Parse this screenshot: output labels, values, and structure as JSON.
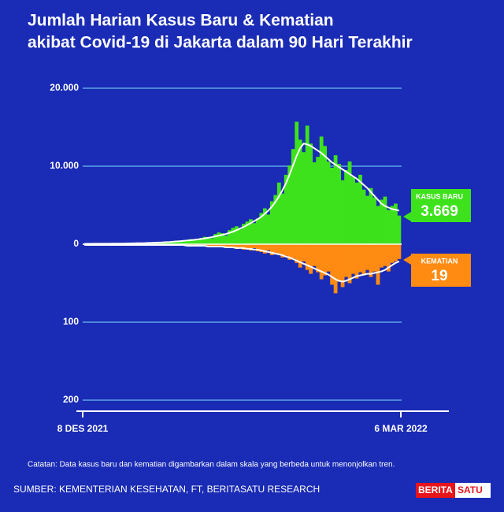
{
  "chart_data": {
    "type": "mirrored-bar",
    "title": [
      "Jumlah Harian Kasus Baru & Kematian",
      "akibat Covid-19 di Jakarta dalam 90 Hari Terakhir"
    ],
    "categories": [
      "8 DES 2021",
      null,
      null,
      null,
      null,
      null,
      null,
      null,
      null,
      null,
      null,
      null,
      null,
      null,
      null,
      null,
      null,
      null,
      null,
      null,
      null,
      null,
      null,
      null,
      null,
      null,
      null,
      null,
      null,
      null,
      null,
      null,
      null,
      null,
      null,
      null,
      null,
      null,
      null,
      null,
      null,
      null,
      null,
      null,
      null,
      null,
      null,
      null,
      null,
      null,
      null,
      null,
      null,
      null,
      null,
      null,
      null,
      null,
      null,
      null,
      null,
      null,
      null,
      null,
      null,
      null,
      null,
      null,
      null,
      null,
      null,
      null,
      null,
      null,
      null,
      null,
      null,
      null,
      null,
      null,
      null,
      null,
      null,
      null,
      null,
      null,
      null,
      null,
      null,
      "6 MAR 2022"
    ],
    "series": [
      {
        "name": "KASUS BARU",
        "color": "#3ee21c",
        "latest_label": "3.669",
        "values": [
          45,
          50,
          60,
          55,
          40,
          70,
          80,
          65,
          50,
          90,
          100,
          95,
          80,
          120,
          150,
          140,
          110,
          180,
          200,
          190,
          160,
          250,
          300,
          280,
          220,
          380,
          450,
          420,
          350,
          550,
          650,
          600,
          500,
          800,
          950,
          900,
          750,
          1300,
          1500,
          1400,
          1100,
          1800,
          2100,
          2300,
          1900,
          2600,
          2900,
          3200,
          2700,
          3300,
          4000,
          4600,
          3800,
          5500,
          6300,
          7900,
          6500,
          8900,
          10100,
          12200,
          15700,
          13400,
          11800,
          15200,
          12900,
          10500,
          11200,
          13800,
          12600,
          10600,
          9800,
          11400,
          10300,
          8200,
          9500,
          10600,
          8600,
          7900,
          8900,
          7000,
          6200,
          7200,
          6000,
          4900,
          5700,
          6100,
          4400,
          4900,
          5200,
          3669
        ],
        "trend": [
          50,
          52,
          55,
          57,
          58,
          60,
          62,
          65,
          68,
          72,
          78,
          85,
          95,
          105,
          115,
          125,
          135,
          145,
          160,
          175,
          190,
          210,
          235,
          260,
          285,
          315,
          350,
          385,
          420,
          460,
          510,
          560,
          610,
          670,
          740,
          820,
          900,
          1000,
          1100,
          1200,
          1300,
          1450,
          1600,
          1800,
          2000,
          2200,
          2450,
          2700,
          2950,
          3200,
          3500,
          3900,
          4300,
          4800,
          5400,
          6100,
          6900,
          7800,
          8900,
          10100,
          11300,
          12300,
          12900,
          12800,
          12600,
          12300,
          12000,
          11700,
          11300,
          10900,
          10500,
          10200,
          9900,
          9600,
          9300,
          9000,
          8700,
          8400,
          8000,
          7600,
          7200,
          6700,
          6200,
          5700,
          5200,
          4900,
          4700,
          4500,
          4400,
          4300
        ]
      },
      {
        "name": "KEMATIAN",
        "color": "#ff8b12",
        "axis": "y2",
        "latest_label": "19",
        "values": [
          1,
          0,
          1,
          0,
          0,
          1,
          0,
          1,
          0,
          0,
          1,
          0,
          1,
          1,
          0,
          1,
          0,
          1,
          1,
          0,
          1,
          1,
          0,
          1,
          2,
          1,
          1,
          2,
          1,
          2,
          2,
          1,
          3,
          2,
          2,
          3,
          2,
          3,
          4,
          3,
          4,
          5,
          3,
          6,
          5,
          7,
          6,
          8,
          5,
          9,
          10,
          12,
          8,
          14,
          11,
          13,
          17,
          15,
          20,
          18,
          24,
          30,
          22,
          33,
          38,
          28,
          36,
          45,
          40,
          35,
          52,
          63,
          48,
          55,
          42,
          50,
          38,
          44,
          36,
          40,
          33,
          42,
          35,
          52,
          30,
          28,
          35,
          24,
          22,
          19
        ],
        "trend": [
          1,
          1,
          1,
          1,
          1,
          1,
          1,
          1,
          1,
          1,
          1,
          1,
          1,
          1,
          1,
          1,
          1,
          1,
          1,
          1,
          1,
          1,
          1,
          1,
          1,
          1,
          1,
          1,
          1,
          2,
          2,
          2,
          2,
          2,
          2,
          3,
          3,
          3,
          3,
          3,
          4,
          4,
          4,
          5,
          5,
          5,
          6,
          6,
          7,
          7,
          8,
          9,
          10,
          11,
          12,
          13,
          14,
          16,
          17,
          19,
          21,
          23,
          25,
          27,
          29,
          31,
          33,
          35,
          37,
          39,
          42,
          45,
          47,
          48,
          47,
          45,
          43,
          41,
          40,
          39,
          38,
          38,
          37,
          36,
          35,
          33,
          30,
          27,
          24,
          22
        ]
      }
    ],
    "ylim": [
      0,
      20000
    ],
    "yticks": [
      0,
      {
        "value": 10000,
        "label": "10.000"
      },
      {
        "value": 20000,
        "label": "20.000"
      }
    ],
    "y2lim": [
      0,
      200
    ],
    "y2ticks": [
      100,
      200
    ],
    "grid": true,
    "note": "Catatan: Data kasus baru dan kematian digambarkan dalam skala yang berbeda untuk menonjolkan tren.",
    "source": "SUMBER: KEMENTERIAN KESEHATAN, FT, BERITASATU RESEARCH",
    "logo": [
      "BERITA",
      "SATU"
    ]
  }
}
